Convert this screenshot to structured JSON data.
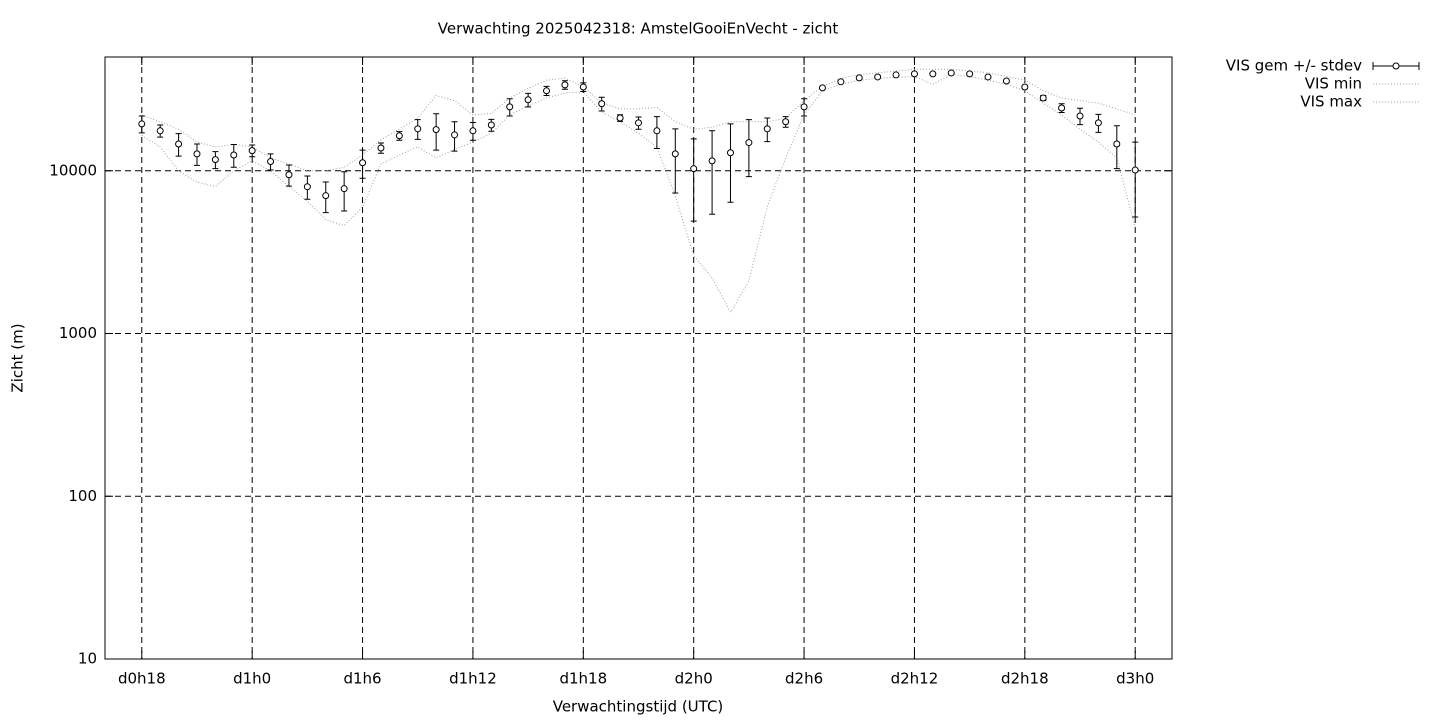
{
  "chart_data": {
    "type": "errorbar-line",
    "title": "Verwachting 2025042318: AmstelGooiEnVecht - zicht",
    "xlabel": "Verwachtingstijd (UTC)",
    "ylabel": "Zicht (m)",
    "log_y": true,
    "grid": true,
    "legend": "outside-top-right",
    "xlim": [
      16,
      74
    ],
    "ylim": [
      10,
      50000
    ],
    "xticks": [
      {
        "value": 18,
        "label": "d0h18"
      },
      {
        "value": 24,
        "label": "d1h0"
      },
      {
        "value": 30,
        "label": "d1h6"
      },
      {
        "value": 36,
        "label": "d1h12"
      },
      {
        "value": 42,
        "label": "d1h18"
      },
      {
        "value": 48,
        "label": "d2h0"
      },
      {
        "value": 54,
        "label": "d2h6"
      },
      {
        "value": 60,
        "label": "d2h12"
      },
      {
        "value": 66,
        "label": "d2h18"
      },
      {
        "value": 72,
        "label": "d3h0"
      }
    ],
    "yticks": [
      10,
      100,
      1000,
      10000
    ],
    "x": [
      18,
      19,
      20,
      21,
      22,
      23,
      24,
      25,
      26,
      27,
      28,
      29,
      30,
      31,
      32,
      33,
      34,
      35,
      36,
      37,
      38,
      39,
      40,
      41,
      42,
      43,
      44,
      45,
      46,
      47,
      48,
      49,
      50,
      51,
      52,
      53,
      54,
      55,
      56,
      57,
      58,
      59,
      60,
      61,
      62,
      63,
      64,
      65,
      66,
      67,
      68,
      69,
      70,
      71,
      72
    ],
    "series": [
      {
        "name": "VIS gem +/- stdev",
        "color": "#000000",
        "values": [
          19400,
          17600,
          14600,
          12700,
          11700,
          12500,
          13300,
          11400,
          9450,
          7980,
          7030,
          7760,
          11200,
          13800,
          16400,
          18100,
          17900,
          16600,
          17600,
          19100,
          24700,
          27300,
          31000,
          33700,
          32700,
          25800,
          21100,
          19700,
          17600,
          12700,
          10300,
          11500,
          12900,
          14900,
          18100,
          20000,
          24700,
          32300,
          35200,
          37200,
          37700,
          38800,
          39400,
          39400,
          39900,
          39400,
          37700,
          35600,
          32700,
          28000,
          24300,
          21700,
          19700,
          14600,
          10100
        ],
        "errors": [
          2300,
          1500,
          2300,
          1900,
          1400,
          2000,
          1100,
          1300,
          1400,
          1300,
          1500,
          2100,
          2200,
          1000,
          1000,
          2500,
          4500,
          3400,
          2200,
          1600,
          3000,
          2600,
          2000,
          2000,
          2000,
          2500,
          1000,
          1700,
          3900,
          5400,
          5400,
          6100,
          6500,
          5700,
          3000,
          1500,
          3000,
          500,
          500,
          500,
          500,
          500,
          500,
          700,
          500,
          500,
          500,
          500,
          700,
          1000,
          1500,
          2500,
          2500,
          4300,
          4900
        ]
      },
      {
        "name": "VIS min",
        "color": "#a0a0a0",
        "values": [
          16500,
          14000,
          10000,
          8500,
          8000,
          10000,
          11500,
          10000,
          8000,
          6500,
          5000,
          4600,
          6000,
          11000,
          12500,
          14000,
          12000,
          13500,
          15000,
          17000,
          22000,
          25000,
          28000,
          30000,
          30500,
          23000,
          20000,
          17000,
          14000,
          7000,
          3000,
          2200,
          1350,
          2100,
          6000,
          12000,
          22000,
          31000,
          34000,
          36000,
          37000,
          37500,
          38000,
          34000,
          39000,
          38000,
          36000,
          34000,
          31000,
          26000,
          22000,
          18000,
          15000,
          12000,
          4500
        ]
      },
      {
        "name": "VIS max",
        "color": "#a0a0a0",
        "values": [
          22000,
          20000,
          18000,
          15000,
          14000,
          14500,
          14000,
          12000,
          11000,
          10000,
          10000,
          10500,
          12500,
          15500,
          18000,
          21000,
          29000,
          27000,
          22000,
          22500,
          28000,
          32000,
          36000,
          37000,
          33000,
          26000,
          24000,
          24000,
          24500,
          20000,
          18000,
          18500,
          20000,
          20000,
          20000,
          21000,
          27000,
          33000,
          37000,
          39000,
          40000,
          41000,
          42000,
          42000,
          42000,
          41000,
          40000,
          38000,
          36000,
          31000,
          28000,
          27000,
          26000,
          24000,
          22000
        ]
      }
    ]
  }
}
